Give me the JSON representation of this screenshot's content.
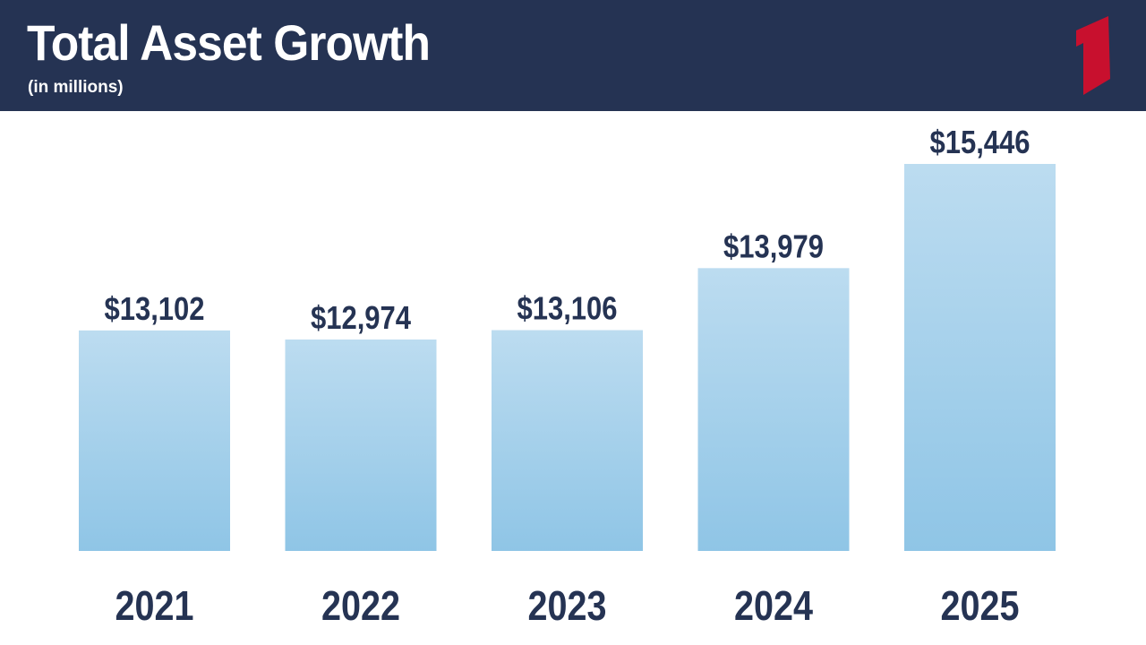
{
  "header": {
    "title": "Total Asset Growth",
    "subtitle": "(in millions)",
    "background_color": "#253353",
    "logo_icon": "red-numeral-one-logo",
    "logo_color": "#C8102E"
  },
  "chart_data": {
    "type": "bar",
    "title": "Total Asset Growth",
    "subtitle": "(in millions)",
    "categories": [
      "2021",
      "2022",
      "2023",
      "2024",
      "2025"
    ],
    "values": [
      13102,
      12974,
      13106,
      13979,
      15446
    ],
    "data_labels": [
      "$13,102",
      "$12,974",
      "$13,106",
      "$13,979",
      "$15,446"
    ],
    "xlabel": "",
    "ylabel": "",
    "grid": false,
    "legend": "none",
    "bar_color_top": "#BCDCF0",
    "bar_color_bottom": "#8FC5E6",
    "label_color": "#253353"
  }
}
